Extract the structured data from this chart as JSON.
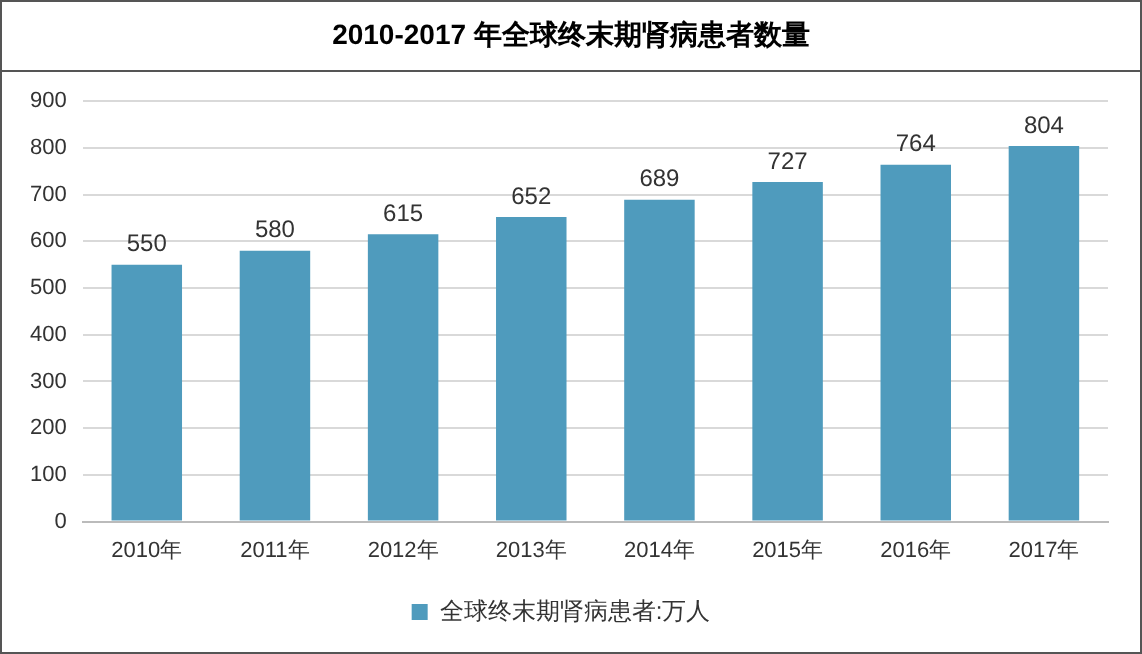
{
  "chart_data": {
    "type": "bar",
    "title": "2010-2017 年全球终末期肾病患者数量",
    "categories": [
      "2010年",
      "2011年",
      "2012年",
      "2013年",
      "2014年",
      "2015年",
      "2016年",
      "2017年"
    ],
    "series": [
      {
        "name": "全球终末期肾病患者:万人",
        "color": "#4f9bbd",
        "values": [
          550,
          580,
          615,
          652,
          689,
          727,
          764,
          804
        ]
      }
    ],
    "ylim": [
      0,
      900
    ],
    "yticks": [
      0,
      100,
      200,
      300,
      400,
      500,
      600,
      700,
      800,
      900
    ],
    "grid": "y",
    "legend": "bottom",
    "data_labels": true
  }
}
